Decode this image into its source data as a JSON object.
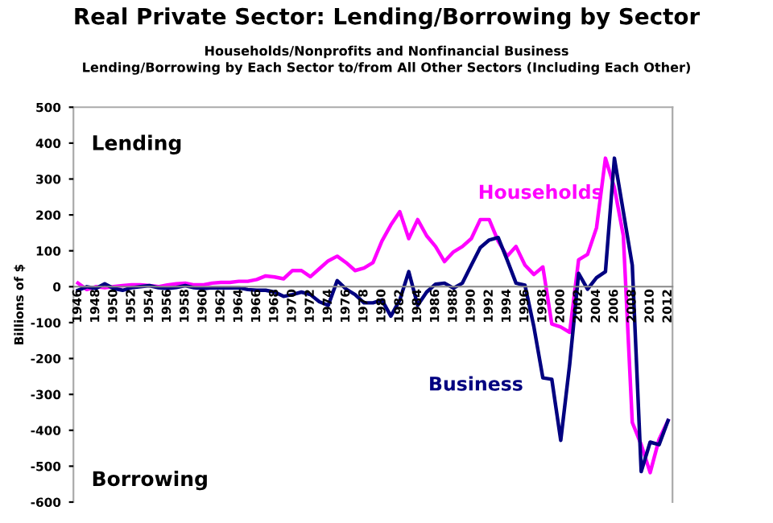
{
  "chart_data": {
    "type": "line",
    "title": "Real Private Sector: Lending/Borrowing by Sector",
    "subtitle": "Households/Nonprofits and Nonfinancial Business\nLending/Borrowing by Each Sector to/from All Other Sectors (Including Each Other)",
    "ylabel": "Billions of $",
    "annotations": [
      "Lending",
      "Borrowing"
    ],
    "categories": [
      "1946",
      null,
      "1948",
      null,
      "1950",
      null,
      "1952",
      null,
      "1954",
      null,
      "1956",
      null,
      "1958",
      null,
      "1960",
      null,
      "1962",
      null,
      "1964",
      null,
      "1966",
      null,
      "1968",
      null,
      "1970",
      null,
      "1972",
      null,
      "1974",
      null,
      "1976",
      null,
      "1978",
      null,
      "1980",
      null,
      "1982",
      null,
      "1984",
      null,
      "1986",
      null,
      "1988",
      null,
      "1990",
      null,
      "1992",
      null,
      "1994",
      null,
      "1996",
      null,
      "1998",
      null,
      "2000",
      null,
      "2002",
      null,
      "2004",
      null,
      "2006",
      null,
      "2008",
      null,
      "2010",
      null,
      "2012"
    ],
    "series": [
      {
        "name": "Households",
        "color": "#ff00ff",
        "values": [
          10,
          -8,
          0,
          -3,
          0,
          3,
          5,
          5,
          3,
          0,
          5,
          8,
          10,
          5,
          5,
          10,
          12,
          12,
          15,
          15,
          20,
          30,
          27,
          22,
          45,
          45,
          28,
          50,
          72,
          85,
          67,
          45,
          52,
          67,
          127,
          172,
          209,
          134,
          187,
          142,
          112,
          70,
          97,
          112,
          134,
          187,
          187,
          127,
          85,
          112,
          60,
          34,
          55,
          -104,
          -112,
          -127,
          75,
          90,
          164,
          358,
          276,
          142,
          -378,
          -440,
          -518,
          -425,
          -373
        ]
      },
      {
        "name": "Business",
        "color": "#000080",
        "values": [
          -10,
          0,
          -5,
          8,
          -5,
          -10,
          -3,
          0,
          3,
          -3,
          -5,
          -2,
          3,
          -3,
          -5,
          -3,
          -3,
          -3,
          -3,
          -8,
          -10,
          -10,
          -15,
          -27,
          -22,
          -15,
          -22,
          -42,
          -52,
          17,
          -7,
          -22,
          -45,
          -45,
          -37,
          -82,
          -37,
          42,
          -52,
          -15,
          7,
          10,
          -4,
          10,
          60,
          109,
          130,
          137,
          75,
          10,
          4,
          -112,
          -254,
          -258,
          -428,
          -216,
          37,
          -7,
          25,
          42,
          358,
          209,
          60,
          -515,
          -433,
          -440,
          -373
        ]
      }
    ],
    "ylim": [
      -600,
      500
    ],
    "yticks": [
      -600,
      -500,
      -400,
      -300,
      -200,
      -100,
      0,
      100,
      200,
      300,
      400,
      500
    ],
    "grid": false,
    "legend": false,
    "marker": "none",
    "line_style": "solid"
  }
}
